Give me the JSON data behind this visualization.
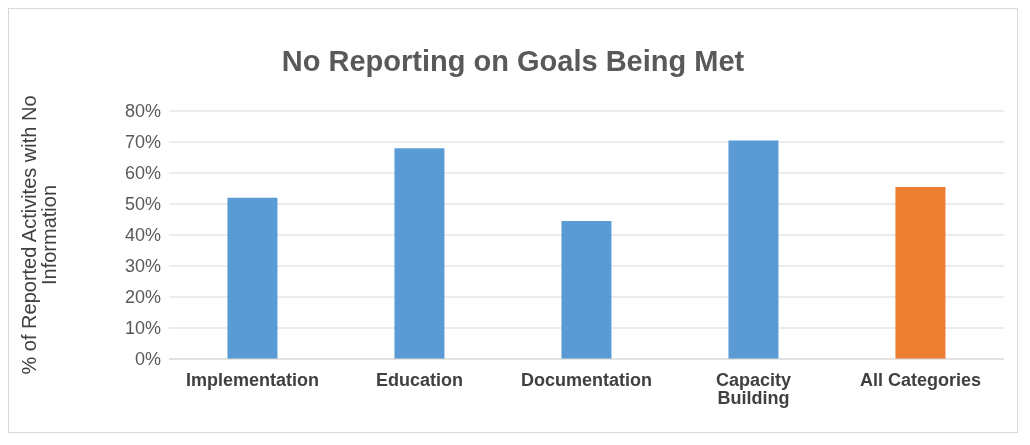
{
  "chart_data": {
    "type": "bar",
    "title": "No Reporting on Goals Being Met",
    "ylabel": "% of Reported Activites with No Information",
    "categories": [
      "Implementation",
      "Education",
      "Documentation",
      "Capacity Building",
      "All Categories"
    ],
    "values": [
      52,
      68,
      44.5,
      70.5,
      55.5
    ],
    "colors": [
      "#5b9bd5",
      "#5b9bd5",
      "#5b9bd5",
      "#5b9bd5",
      "#ed7d31"
    ],
    "ylim": [
      0,
      80
    ],
    "yticks": [
      {
        "value": 0,
        "label": "0%"
      },
      {
        "value": 10,
        "label": "10%"
      },
      {
        "value": 20,
        "label": "20%"
      },
      {
        "value": 30,
        "label": "30%"
      },
      {
        "value": 40,
        "label": "40%"
      },
      {
        "value": 50,
        "label": "50%"
      },
      {
        "value": 60,
        "label": "60%"
      },
      {
        "value": 70,
        "label": "70%"
      },
      {
        "value": 80,
        "label": "80%"
      }
    ],
    "grid": "y"
  }
}
